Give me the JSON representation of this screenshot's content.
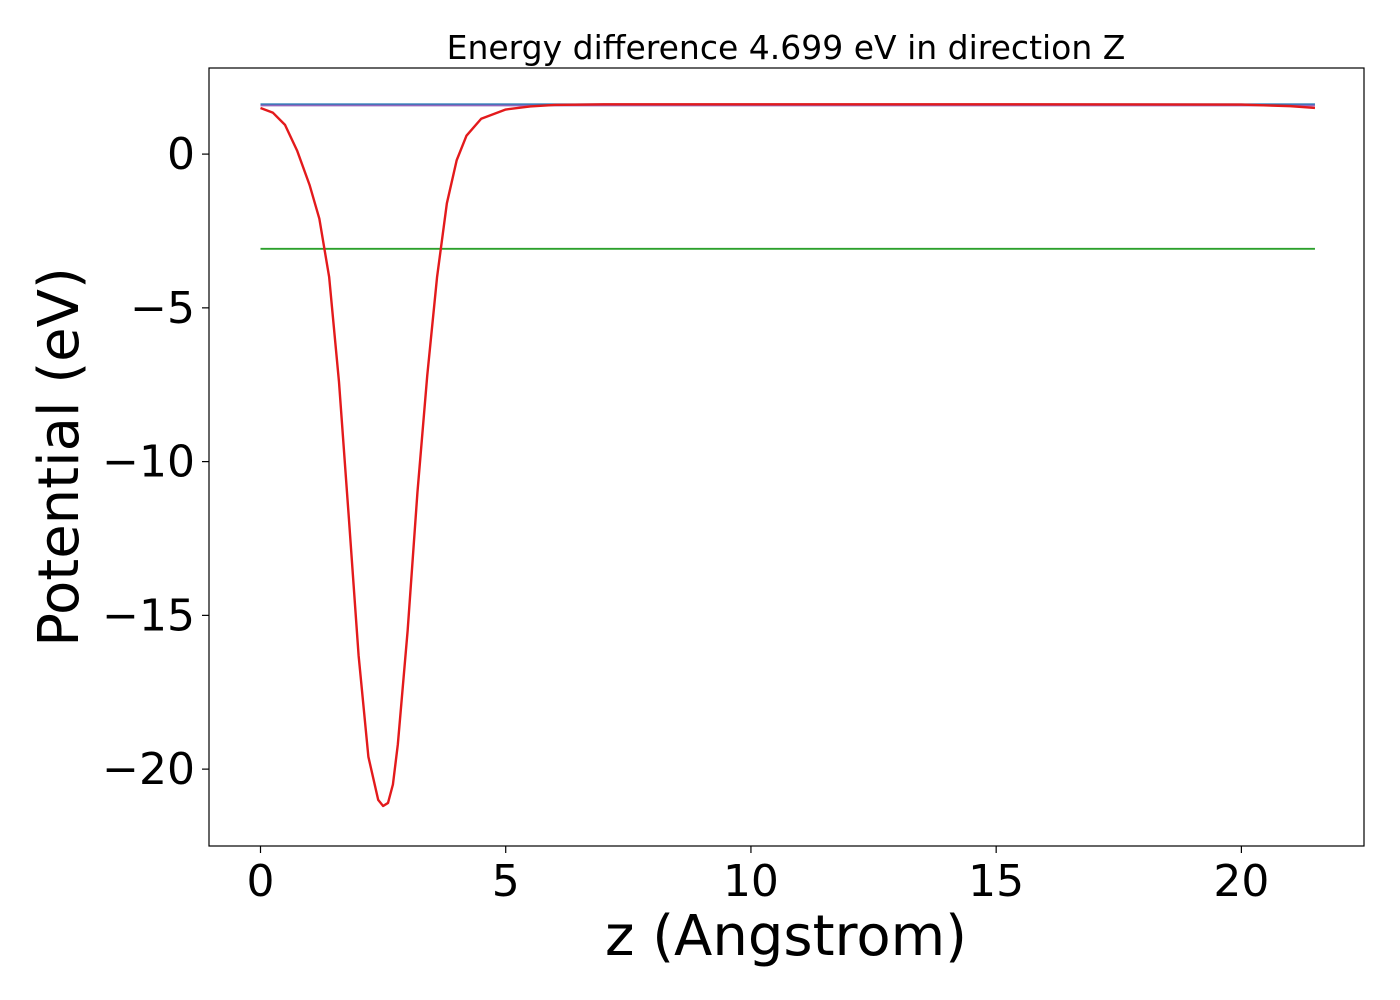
{
  "chart_data": {
    "type": "line",
    "title": "Energy difference 4.699 eV in direction Z",
    "xlabel": "z (Angstrom)",
    "ylabel": "Potential (eV)",
    "xlim": [
      -1.05,
      22.5
    ],
    "ylim": [
      -22.5,
      2.8
    ],
    "x_ticks": [
      0,
      5,
      10,
      15,
      20
    ],
    "x_tick_labels": [
      "0",
      "5",
      "10",
      "15",
      "20"
    ],
    "y_ticks": [
      0,
      -5,
      -10,
      -15,
      -20
    ],
    "y_tick_labels": [
      "0",
      "−5",
      "−10",
      "−15",
      "−20"
    ],
    "grid": false,
    "series": [
      {
        "color": "#1f77b4",
        "x": [
          0,
          21.5
        ],
        "y": [
          1.62,
          1.62
        ]
      },
      {
        "color": "#2ca02c",
        "x": [
          0,
          21.5
        ],
        "y": [
          -3.08,
          -3.08
        ]
      },
      {
        "color": "#9467bd",
        "x": [
          0,
          21.5
        ],
        "y": [
          1.58,
          1.58
        ]
      },
      {
        "color": "#e31a1c",
        "x": [
          0,
          0.25,
          0.5,
          0.75,
          1.0,
          1.2,
          1.4,
          1.6,
          1.8,
          2.0,
          2.2,
          2.4,
          2.5,
          2.6,
          2.7,
          2.8,
          3.0,
          3.2,
          3.4,
          3.6,
          3.8,
          4.0,
          4.2,
          4.5,
          5.0,
          5.5,
          6.0,
          7.0,
          10.0,
          15.0,
          20.0,
          21.0,
          21.5
        ],
        "y": [
          1.5,
          1.35,
          0.95,
          0.1,
          -1.0,
          -2.1,
          -4.0,
          -7.4,
          -11.8,
          -16.3,
          -19.6,
          -21.0,
          -21.2,
          -21.1,
          -20.5,
          -19.2,
          -15.5,
          -11.0,
          -7.2,
          -4.0,
          -1.6,
          -0.2,
          0.6,
          1.15,
          1.45,
          1.55,
          1.6,
          1.62,
          1.62,
          1.62,
          1.61,
          1.56,
          1.5
        ]
      }
    ]
  }
}
